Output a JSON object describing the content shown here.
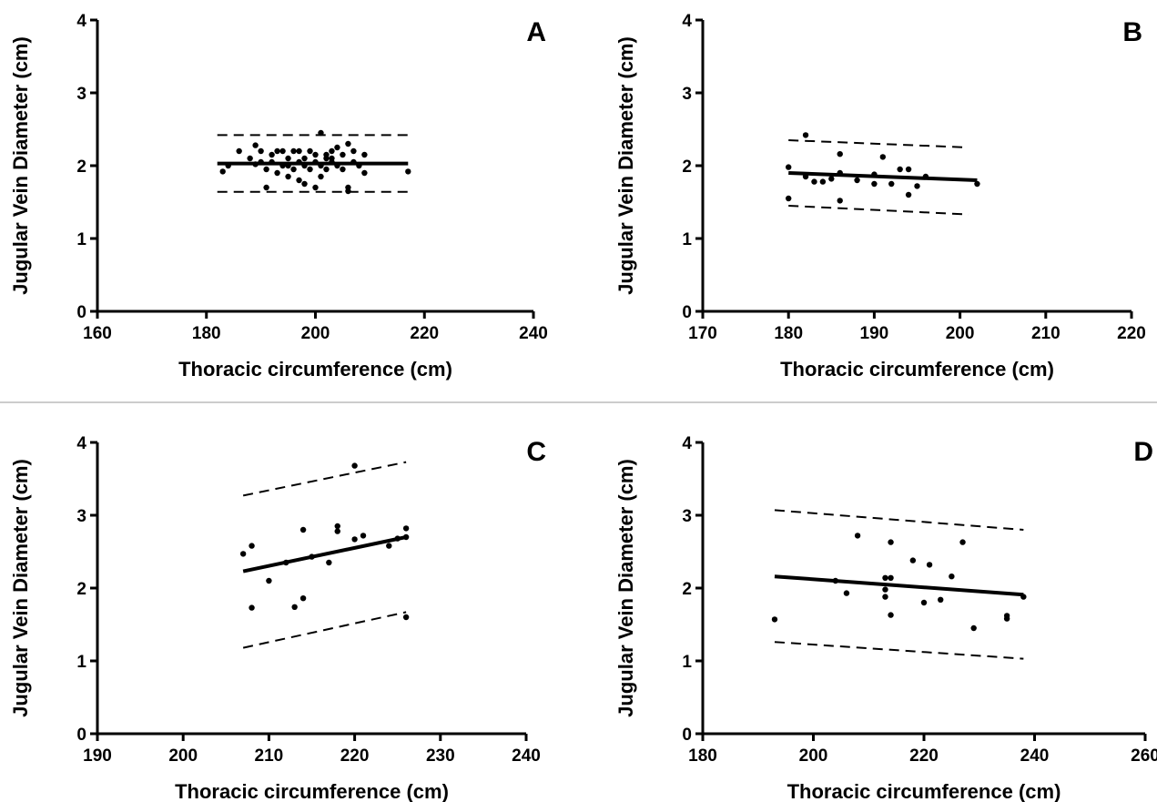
{
  "chart_data": [
    {
      "type": "scatter",
      "panel_label": "A",
      "xlabel": "Thoracic circumference (cm)",
      "ylabel": "Jugular Vein Diameter (cm)",
      "xlim": [
        160,
        240
      ],
      "ylim": [
        0,
        4
      ],
      "xticks": [
        160,
        180,
        200,
        220,
        240
      ],
      "yticks": [
        0,
        1,
        2,
        3,
        4
      ],
      "points": [
        [
          183,
          1.92
        ],
        [
          184,
          2.0
        ],
        [
          186,
          2.2
        ],
        [
          188,
          2.1
        ],
        [
          189,
          2.02
        ],
        [
          189,
          2.28
        ],
        [
          190,
          2.05
        ],
        [
          190,
          2.2
        ],
        [
          191,
          1.95
        ],
        [
          191,
          1.7
        ],
        [
          192,
          2.15
        ],
        [
          192,
          2.05
        ],
        [
          193,
          2.2
        ],
        [
          193,
          1.9
        ],
        [
          194,
          2.0
        ],
        [
          194,
          2.2
        ],
        [
          195,
          1.85
        ],
        [
          195,
          2.1
        ],
        [
          195,
          2.0
        ],
        [
          196,
          2.2
        ],
        [
          196,
          1.95
        ],
        [
          197,
          2.05
        ],
        [
          197,
          1.8
        ],
        [
          197,
          2.2
        ],
        [
          198,
          2.1
        ],
        [
          198,
          1.75
        ],
        [
          198,
          2.0
        ],
        [
          199,
          2.2
        ],
        [
          199,
          1.95
        ],
        [
          200,
          2.05
        ],
        [
          200,
          1.7
        ],
        [
          200,
          2.15
        ],
        [
          201,
          2.0
        ],
        [
          201,
          2.45
        ],
        [
          201,
          1.85
        ],
        [
          202,
          2.1
        ],
        [
          202,
          2.15
        ],
        [
          202,
          1.95
        ],
        [
          203,
          2.2
        ],
        [
          203,
          2.05
        ],
        [
          203,
          2.1
        ],
        [
          204,
          2.0
        ],
        [
          204,
          2.25
        ],
        [
          205,
          2.15
        ],
        [
          205,
          1.95
        ],
        [
          206,
          2.3
        ],
        [
          206,
          1.7
        ],
        [
          206,
          1.65
        ],
        [
          207,
          2.05
        ],
        [
          207,
          2.2
        ],
        [
          208,
          2.0
        ],
        [
          209,
          2.15
        ],
        [
          209,
          1.9
        ],
        [
          217,
          1.92
        ]
      ],
      "fit": {
        "x": [
          182,
          217
        ],
        "y": [
          2.03,
          2.03
        ]
      },
      "band_upper": {
        "x": [
          182,
          217
        ],
        "y": [
          2.42,
          2.42
        ]
      },
      "band_lower": {
        "x": [
          182,
          217
        ],
        "y": [
          1.64,
          1.64
        ]
      }
    },
    {
      "type": "scatter",
      "panel_label": "B",
      "xlabel": "Thoracic circumference (cm)",
      "ylabel": "Jugular Vein Diameter (cm)",
      "xlim": [
        170,
        220
      ],
      "ylim": [
        0,
        4
      ],
      "xticks": [
        170,
        180,
        190,
        200,
        210,
        220
      ],
      "yticks": [
        0,
        1,
        2,
        3,
        4
      ],
      "points": [
        [
          180,
          1.98
        ],
        [
          180,
          1.55
        ],
        [
          182,
          2.42
        ],
        [
          182,
          1.85
        ],
        [
          183,
          1.78
        ],
        [
          184,
          1.78
        ],
        [
          185,
          1.82
        ],
        [
          186,
          2.16
        ],
        [
          186,
          1.9
        ],
        [
          186,
          1.52
        ],
        [
          188,
          1.8
        ],
        [
          190,
          1.88
        ],
        [
          190,
          1.75
        ],
        [
          191,
          2.12
        ],
        [
          192,
          1.75
        ],
        [
          193,
          1.95
        ],
        [
          194,
          1.95
        ],
        [
          194,
          1.6
        ],
        [
          195,
          1.72
        ],
        [
          196,
          1.85
        ],
        [
          202,
          1.75
        ]
      ],
      "fit": {
        "x": [
          180,
          202
        ],
        "y": [
          1.9,
          1.8
        ]
      },
      "band_upper": {
        "x": [
          180,
          201
        ],
        "y": [
          2.35,
          2.25
        ]
      },
      "band_lower": {
        "x": [
          180,
          201
        ],
        "y": [
          1.45,
          1.33
        ]
      }
    },
    {
      "type": "scatter",
      "panel_label": "C",
      "xlabel": "Thoracic circumference (cm)",
      "ylabel": "Jugular Vein Diameter (cm)",
      "xlim": [
        190,
        240
      ],
      "ylim": [
        0,
        4
      ],
      "xticks": [
        190,
        200,
        210,
        220,
        230,
        240
      ],
      "yticks": [
        0,
        1,
        2,
        3,
        4
      ],
      "points": [
        [
          207,
          2.47
        ],
        [
          208,
          2.58
        ],
        [
          208,
          1.73
        ],
        [
          210,
          2.1
        ],
        [
          212,
          2.35
        ],
        [
          213,
          1.74
        ],
        [
          214,
          2.8
        ],
        [
          214,
          1.86
        ],
        [
          215,
          2.43
        ],
        [
          217,
          2.35
        ],
        [
          218,
          2.85
        ],
        [
          218,
          2.78
        ],
        [
          220,
          2.67
        ],
        [
          220,
          3.68
        ],
        [
          221,
          2.72
        ],
        [
          224,
          2.58
        ],
        [
          225,
          2.68
        ],
        [
          226,
          2.82
        ],
        [
          226,
          2.7
        ],
        [
          226,
          1.6
        ]
      ],
      "fit": {
        "x": [
          207,
          226
        ],
        "y": [
          2.23,
          2.7
        ]
      },
      "band_upper": {
        "x": [
          207,
          226
        ],
        "y": [
          3.27,
          3.73
        ]
      },
      "band_lower": {
        "x": [
          207,
          226
        ],
        "y": [
          1.18,
          1.67
        ]
      }
    },
    {
      "type": "scatter",
      "panel_label": "D",
      "xlabel": "Thoracic circumference (cm)",
      "ylabel": "Jugular Vein Diameter (cm)",
      "xlim": [
        180,
        260
      ],
      "ylim": [
        0,
        4
      ],
      "xticks": [
        180,
        200,
        220,
        240,
        260
      ],
      "yticks": [
        0,
        1,
        2,
        3,
        4
      ],
      "points": [
        [
          193,
          1.57
        ],
        [
          204,
          2.1
        ],
        [
          206,
          1.93
        ],
        [
          208,
          2.72
        ],
        [
          213,
          2.14
        ],
        [
          213,
          1.98
        ],
        [
          213,
          1.88
        ],
        [
          214,
          2.14
        ],
        [
          214,
          1.63
        ],
        [
          214,
          2.63
        ],
        [
          218,
          2.38
        ],
        [
          220,
          1.8
        ],
        [
          221,
          2.32
        ],
        [
          223,
          1.84
        ],
        [
          225,
          2.16
        ],
        [
          227,
          2.63
        ],
        [
          229,
          1.45
        ],
        [
          235,
          1.62
        ],
        [
          235,
          1.58
        ],
        [
          238,
          1.88
        ]
      ],
      "fit": {
        "x": [
          193,
          238
        ],
        "y": [
          2.16,
          1.91
        ]
      },
      "band_upper": {
        "x": [
          193,
          238
        ],
        "y": [
          3.07,
          2.8
        ]
      },
      "band_lower": {
        "x": [
          193,
          238
        ],
        "y": [
          1.26,
          1.03
        ]
      }
    }
  ]
}
